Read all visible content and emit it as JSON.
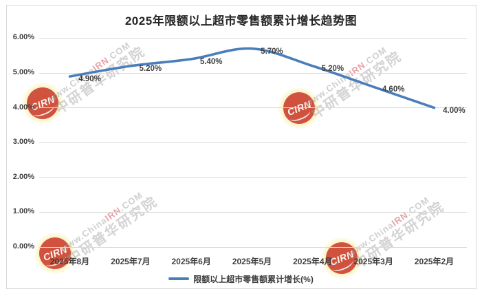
{
  "title": "2025年限额以上超市零售额累计增长趋势图",
  "chart_data": {
    "type": "line",
    "smooth": true,
    "title": "2025年限额以上超市零售额累计增长趋势图",
    "categories": [
      "2025年8月",
      "2025年7月",
      "2025年6月",
      "2025年5月",
      "2025年4月",
      "2025年3月",
      "2025年2月"
    ],
    "series": [
      {
        "name": "限额以上超市零售额累计增长(%)",
        "values": [
          4.9,
          5.2,
          5.4,
          5.7,
          5.2,
          4.6,
          4.0
        ]
      }
    ],
    "data_labels": [
      "4.90%",
      "5.20%",
      "5.40%",
      "5.70%",
      "5.20%",
      "4.60%",
      "4.00%"
    ],
    "y_ticks": [
      "6.00%",
      "5.00%",
      "4.00%",
      "3.00%",
      "2.00%",
      "1.00%",
      "0.00%"
    ],
    "xlabel": "",
    "ylabel": "",
    "ylim": [
      0,
      6
    ],
    "grid": true,
    "legend_position": "bottom"
  },
  "legend": {
    "label": "限额以上超市零售额累计增长(%)"
  },
  "watermark": {
    "logo_text": "CIRN",
    "url_prefix": "www.China",
    "url_highlight": "IRN",
    "url_suffix": ".COM",
    "brand": "中研普华研究院"
  },
  "colors": {
    "line": "#4A7EBB",
    "grid": "#D9D9D9",
    "frame_border": "#D6D6D6",
    "axis_text": "#3F3F3F",
    "title_text": "#262626",
    "watermark_red": "#C42A21"
  }
}
